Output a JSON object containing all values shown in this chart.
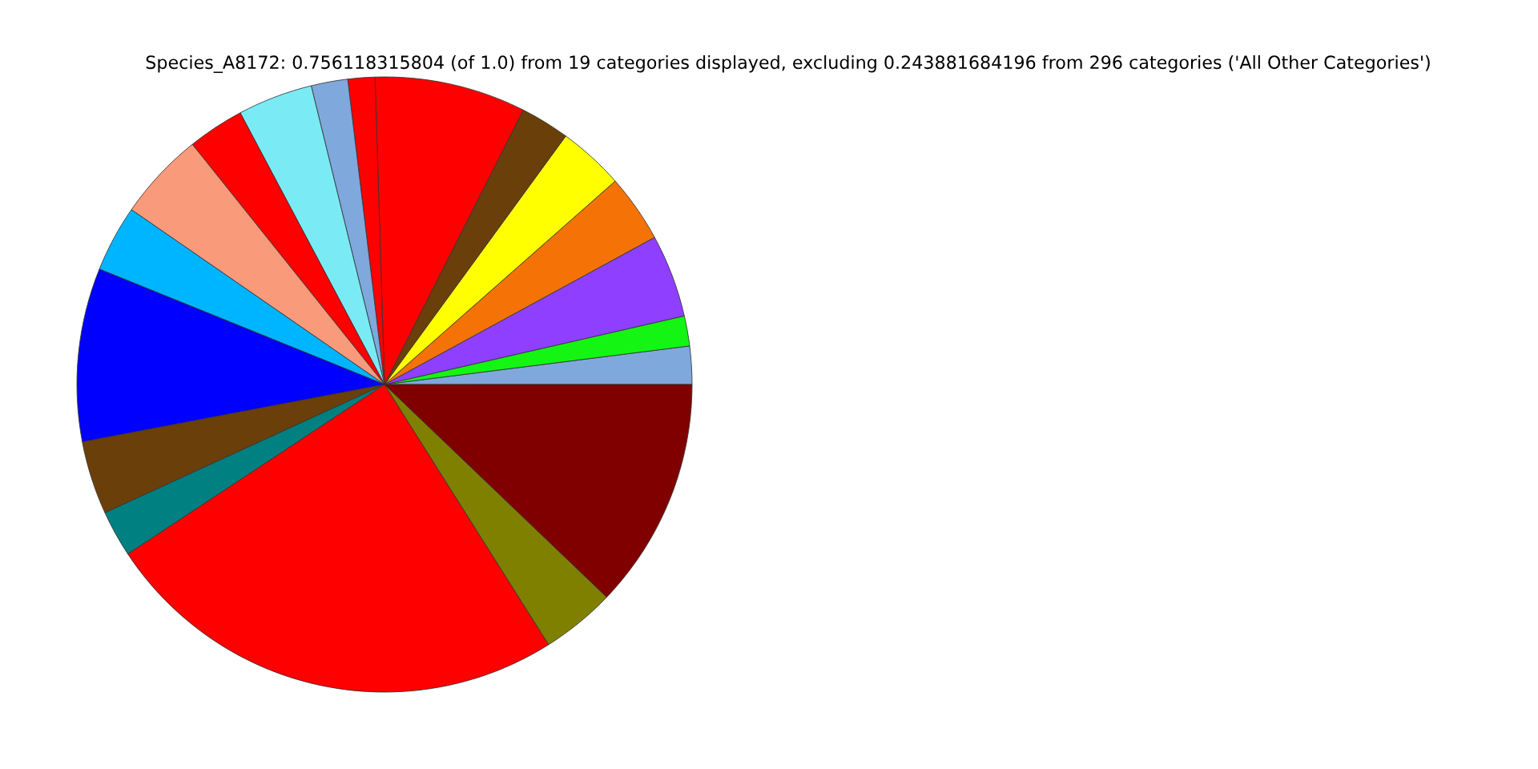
{
  "chart_data": {
    "type": "pie",
    "title": "Species_A8172: 0.756118315804 (of 1.0) from 19 categories displayed, excluding 0.243881684196 from 296 categories ('All Other Categories')",
    "categories": [
      null,
      null,
      null,
      null,
      null,
      null,
      null,
      null,
      null,
      null,
      null,
      null,
      null,
      null,
      null,
      null,
      null,
      null,
      null
    ],
    "values": [
      2.0,
      1.58,
      4.36,
      3.56,
      3.47,
      2.58,
      7.94,
      1.42,
      1.92,
      3.94,
      2.97,
      4.64,
      3.5,
      9.11,
      3.86,
      2.44,
      24.67,
      3.89,
      12.15
    ],
    "colors": [
      "#7fa8dc",
      "#14f514",
      "#8f3fff",
      "#f57306",
      "#ffff00",
      "#6b3f0a",
      "#ff0000",
      "#ff0000",
      "#7fa8dc",
      "#7aebf5",
      "#ff0000",
      "#f99a7a",
      "#00b5ff",
      "#0000ff",
      "#6b3f0a",
      "#008080",
      "#ff0000",
      "#808000",
      "#800000"
    ]
  }
}
